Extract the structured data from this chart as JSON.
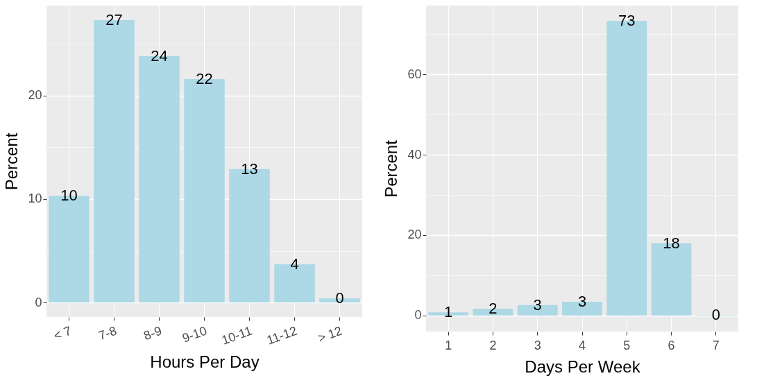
{
  "chart_data": [
    {
      "type": "bar",
      "xlabel": "Hours Per Day",
      "ylabel": "Percent",
      "categories": [
        "< 7",
        "7-8",
        "8-9",
        "9-10",
        "10-11",
        "11-12",
        "> 12"
      ],
      "values": [
        10.3,
        27.3,
        23.8,
        21.6,
        12.9,
        3.7,
        0.4
      ],
      "value_labels": [
        "10",
        "27",
        "24",
        "22",
        "13",
        "4",
        "0"
      ],
      "color": "#add8e6",
      "ylim": [
        -1.4,
        28.7
      ],
      "yticks": [
        0,
        {
          "value": 5,
          "label": null
        },
        10,
        {
          "value": 15,
          "label": null
        },
        20,
        {
          "value": 25,
          "label": null
        }
      ],
      "grid": true
    },
    {
      "type": "bar",
      "xlabel": "Days Per Week",
      "ylabel": "Percent",
      "categories": [
        "1",
        "2",
        "3",
        "4",
        "5",
        "6",
        "7"
      ],
      "values": [
        0.8,
        1.7,
        2.6,
        3.4,
        73.3,
        18.0,
        0.1
      ],
      "value_labels": [
        "1",
        "2",
        "3",
        "3",
        "73",
        "18",
        "0"
      ],
      "color": "#add8e6",
      "ylim": [
        -4.0,
        77.1
      ],
      "yticks": [
        0,
        {
          "value": 10,
          "label": null
        },
        20,
        {
          "value": 30,
          "label": null
        },
        40,
        {
          "value": 50,
          "label": null
        },
        60,
        {
          "value": 70,
          "label": null
        }
      ],
      "grid": true
    }
  ]
}
